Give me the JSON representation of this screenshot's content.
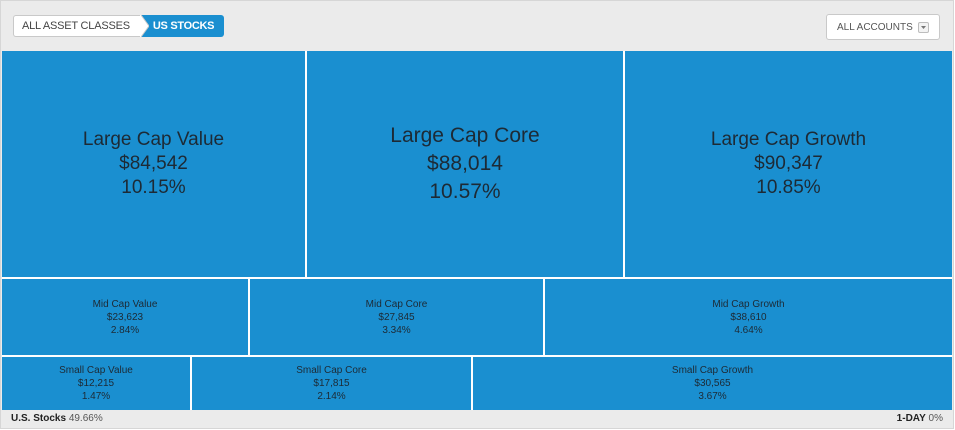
{
  "breadcrumb": {
    "items": [
      "ALL ASSET CLASSES",
      "US STOCKS"
    ]
  },
  "accounts_select": {
    "label": "ALL ACCOUNTS",
    "icon": "chevron-down-icon"
  },
  "tiles": [
    {
      "name": "Large Cap Value",
      "value": "$84,542",
      "percent": "10.15%"
    },
    {
      "name": "Large Cap Core",
      "value": "$88,014",
      "percent": "10.57%"
    },
    {
      "name": "Large Cap Growth",
      "value": "$90,347",
      "percent": "10.85%"
    },
    {
      "name": "Mid Cap Value",
      "value": "$23,623",
      "percent": "2.84%"
    },
    {
      "name": "Mid Cap Core",
      "value": "$27,845",
      "percent": "3.34%"
    },
    {
      "name": "Mid Cap Growth",
      "value": "$38,610",
      "percent": "4.64%"
    },
    {
      "name": "Small Cap Value",
      "value": "$12,215",
      "percent": "1.47%"
    },
    {
      "name": "Small Cap Core",
      "value": "$17,815",
      "percent": "2.14%"
    },
    {
      "name": "Small Cap Growth",
      "value": "$30,565",
      "percent": "3.67%"
    }
  ],
  "colors": {
    "tile": "#1a8fd0",
    "text": "#1d2a35"
  },
  "footer": {
    "left_label": "U.S. Stocks",
    "left_value": "49.66%",
    "right_label": "1-DAY",
    "right_value": "0%"
  }
}
